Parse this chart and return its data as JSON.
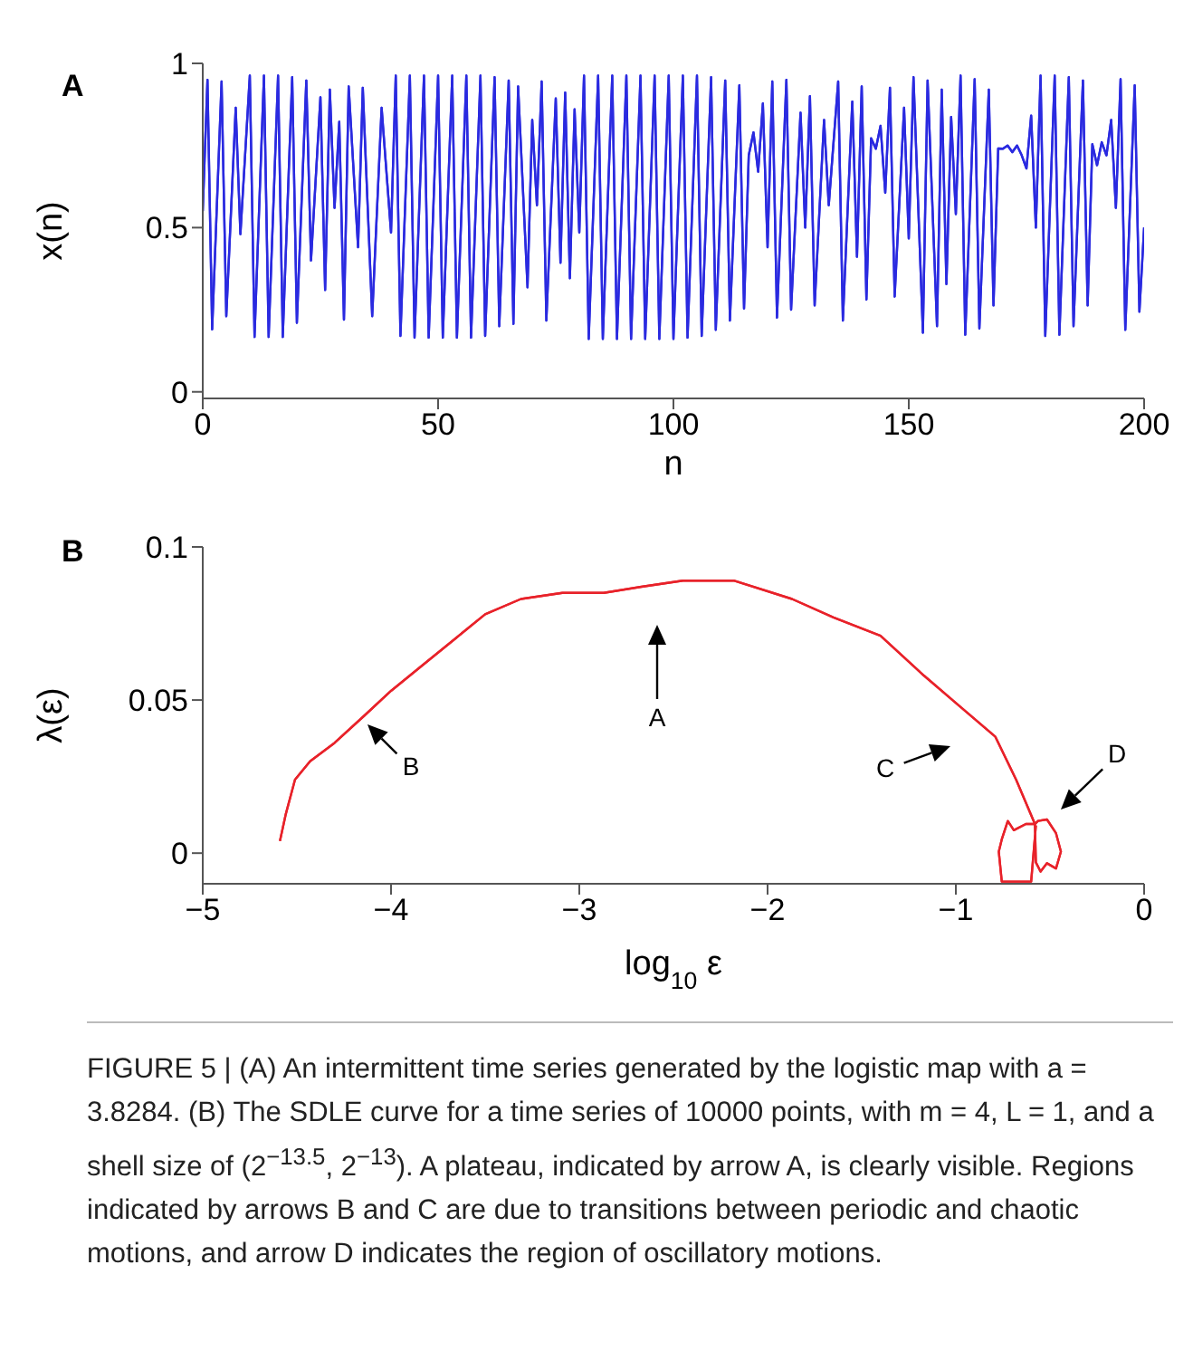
{
  "chart_data": [
    {
      "type": "line",
      "title": "A",
      "xlabel": "n",
      "ylabel": "x(n)",
      "xlim": [
        0,
        200
      ],
      "ylim": [
        -0.02,
        1
      ],
      "xticks": [
        0,
        50,
        100,
        150,
        200
      ],
      "yticks": [
        0,
        0.5,
        1
      ],
      "x": [
        0,
        1,
        2,
        4,
        5,
        7,
        8,
        10,
        11,
        13,
        14,
        16,
        17,
        19,
        20,
        22,
        23,
        25,
        26,
        27,
        28,
        29,
        30,
        31,
        33,
        34,
        36,
        38,
        40,
        41,
        42,
        44,
        45,
        47,
        48,
        50,
        51,
        53,
        54,
        56,
        57,
        59,
        60,
        62,
        63,
        65,
        66,
        67,
        69,
        70,
        71,
        72,
        73,
        75,
        76,
        77,
        78,
        79,
        80,
        81,
        82,
        84,
        85,
        87,
        88,
        90,
        91,
        93,
        94,
        96,
        97,
        99,
        100,
        102,
        103,
        105,
        106,
        108,
        109,
        111,
        112,
        114,
        115,
        116,
        117,
        118,
        119,
        120,
        121,
        122,
        124,
        125,
        127,
        128,
        129,
        130,
        132,
        133,
        135,
        136,
        138,
        139,
        140,
        141,
        142,
        143,
        144,
        145,
        146,
        147,
        149,
        150,
        151,
        153,
        154,
        156,
        157,
        158,
        159,
        160,
        161,
        162,
        164,
        165,
        167,
        168,
        169,
        170,
        171,
        172,
        173,
        174,
        175,
        176,
        177,
        178,
        179,
        181,
        182,
        184,
        185,
        187,
        188,
        189,
        190,
        191,
        192,
        193,
        194,
        195,
        196,
        198,
        199,
        200
      ],
      "series": [
        {
          "color": "#2a2ae0",
          "values": [
            0.55,
            0.95,
            0.19,
            0.945,
            0.23,
            0.865,
            0.48,
            0.963,
            0.167,
            0.963,
            0.167,
            0.963,
            0.167,
            0.958,
            0.21,
            0.948,
            0.4,
            0.897,
            0.31,
            0.92,
            0.56,
            0.822,
            0.22,
            0.93,
            0.44,
            0.926,
            0.23,
            0.865,
            0.485,
            0.963,
            0.17,
            0.963,
            0.165,
            0.963,
            0.165,
            0.963,
            0.165,
            0.963,
            0.165,
            0.963,
            0.165,
            0.963,
            0.17,
            0.958,
            0.2,
            0.948,
            0.207,
            0.93,
            0.318,
            0.828,
            0.568,
            0.945,
            0.217,
            0.893,
            0.393,
            0.911,
            0.346,
            0.86,
            0.485,
            0.963,
            0.161,
            0.963,
            0.161,
            0.963,
            0.161,
            0.963,
            0.161,
            0.963,
            0.161,
            0.963,
            0.161,
            0.963,
            0.161,
            0.963,
            0.165,
            0.963,
            0.17,
            0.958,
            0.189,
            0.948,
            0.217,
            0.933,
            0.254,
            0.72,
            0.79,
            0.67,
            0.878,
            0.44,
            0.945,
            0.226,
            0.95,
            0.25,
            0.85,
            0.5,
            0.9,
            0.263,
            0.828,
            0.568,
            0.945,
            0.217,
            0.884,
            0.411,
            0.93,
            0.281,
            0.772,
            0.74,
            0.81,
            0.606,
            0.926,
            0.29,
            0.865,
            0.467,
            0.958,
            0.18,
            0.948,
            0.2,
            0.92,
            0.328,
            0.837,
            0.541,
            0.963,
            0.174,
            0.952,
            0.193,
            0.92,
            0.263,
            0.741,
            0.74,
            0.75,
            0.73,
            0.75,
            0.72,
            0.68,
            0.841,
            0.5,
            0.963,
            0.17,
            0.963,
            0.174,
            0.958,
            0.2,
            0.948,
            0.263,
            0.754,
            0.69,
            0.76,
            0.72,
            0.828,
            0.56,
            0.952,
            0.189,
            0.933,
            0.244,
            0.5
          ]
        }
      ]
    },
    {
      "type": "line",
      "title": "B",
      "xlabel": "log$_{10}$ ε",
      "ylabel": "λ(ε)",
      "xlim": [
        -5,
        0
      ],
      "ylim": [
        -0.01,
        0.1
      ],
      "xticks": [
        {
          "value": -5,
          "label": "−5"
        },
        {
          "value": -4,
          "label": "−4"
        },
        {
          "value": -3,
          "label": "−3"
        },
        {
          "value": -2,
          "label": "−2"
        },
        {
          "value": -1,
          "label": "−1"
        },
        0
      ],
      "yticks": [
        0,
        0.05,
        0.1
      ],
      "x": [
        -4.59,
        -4.56,
        -4.51,
        -4.43,
        -4.3,
        -4.14,
        -4,
        -3.82,
        -3.66,
        -3.5,
        -3.31,
        -3.09,
        -2.87,
        -2.67,
        -2.45,
        -2.18,
        -1.87,
        -1.65,
        -1.4,
        -1.17,
        -0.98,
        -0.79,
        -0.68,
        -0.58,
        -0.564,
        -0.516,
        -0.468,
        -0.442,
        -0.468,
        -0.516,
        -0.55,
        -0.575,
        -0.58,
        -0.628,
        -0.692,
        -0.724,
        -0.756,
        -0.772,
        -0.756,
        -0.6,
        -0.575
      ],
      "series": [
        {
          "color": "#e8222a",
          "values": [
            0.004,
            0.0125,
            0.024,
            0.03,
            0.036,
            0.045,
            0.053,
            0.062,
            0.07,
            0.078,
            0.083,
            0.085,
            0.085,
            0.087,
            0.089,
            0.089,
            0.083,
            0.077,
            0.071,
            0.058,
            0.048,
            0.038,
            0.024,
            0.0095,
            0.0105,
            0.011,
            0.0065,
            0.0005,
            -0.005,
            -0.0033,
            -0.006,
            -0.003,
            0.0095,
            0.0095,
            0.0075,
            0.0105,
            0.0045,
            0.0005,
            -0.0093,
            -0.0093,
            0.009
          ]
        }
      ],
      "annotations": [
        "A",
        "B",
        "C",
        "D",
        "FIGURE 5 | (A) An intermittent time series generated by the logistic map with a = 3.8284. (B) The SDLE curve for a time series of 10000 points, with m = 4, L = 1, and a shell size of (2$^{−13.5}$, 2$^{−13}$). A plateau, indicated by arrow A, is clearly visible. Regions indicated by arrows B and C are due to transitions between periodic and chaotic motions, and arrow D indicates the region of oscillatory motions."
      ]
    }
  ]
}
